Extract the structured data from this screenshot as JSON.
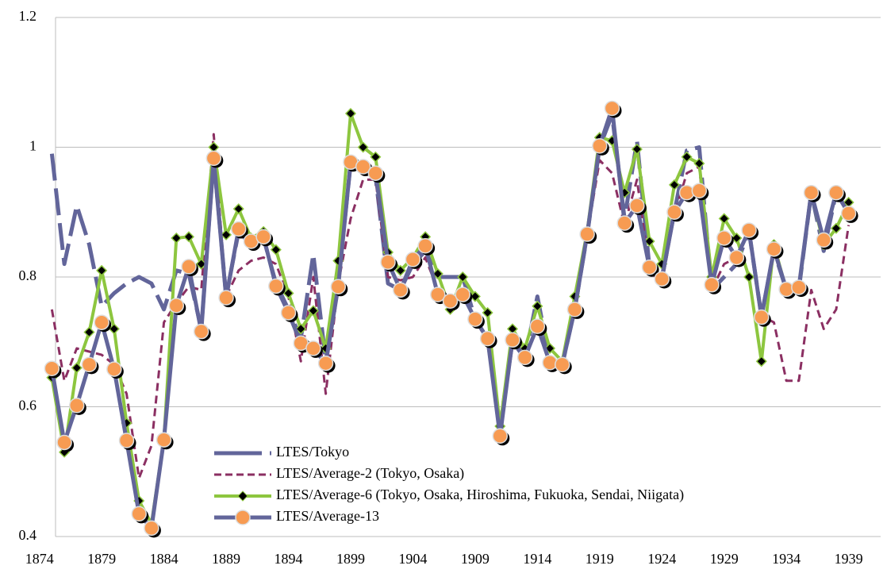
{
  "chart_data": {
    "type": "line",
    "x": [
      1875,
      1876,
      1877,
      1878,
      1879,
      1880,
      1881,
      1882,
      1883,
      1884,
      1885,
      1886,
      1887,
      1888,
      1889,
      1890,
      1891,
      1892,
      1893,
      1894,
      1895,
      1896,
      1897,
      1898,
      1899,
      1900,
      1901,
      1902,
      1903,
      1904,
      1905,
      1906,
      1907,
      1908,
      1909,
      1910,
      1911,
      1912,
      1913,
      1914,
      1915,
      1916,
      1917,
      1918,
      1919,
      1920,
      1921,
      1922,
      1923,
      1924,
      1925,
      1926,
      1927,
      1928,
      1929,
      1930,
      1931,
      1932,
      1933,
      1934,
      1935,
      1936,
      1937,
      1938,
      1939
    ],
    "xlim": [
      1873,
      1941
    ],
    "xticks": [
      1874,
      1879,
      1884,
      1889,
      1894,
      1899,
      1904,
      1909,
      1914,
      1919,
      1924,
      1929,
      1934,
      1939
    ],
    "ylim": [
      0.4,
      1.2
    ],
    "yticks": [
      0.4,
      0.6,
      0.8,
      1,
      1.2
    ],
    "grid": true,
    "legend": "lower-left",
    "series": [
      {
        "name": "LTES/Tokyo",
        "color": "#62659a",
        "line_style": "long-dash",
        "marker": "none",
        "values": [
          0.99,
          0.82,
          0.91,
          0.85,
          0.755,
          0.775,
          0.79,
          0.8,
          0.79,
          0.75,
          0.81,
          0.805,
          0.72,
          0.985,
          0.77,
          0.87,
          0.85,
          0.86,
          0.79,
          0.75,
          0.705,
          0.835,
          0.67,
          0.79,
          0.975,
          0.965,
          0.955,
          0.79,
          0.78,
          0.82,
          0.84,
          0.8,
          0.8,
          0.8,
          0.735,
          0.705,
          0.57,
          0.7,
          0.675,
          0.77,
          0.67,
          0.665,
          0.75,
          0.865,
          1.0,
          1.05,
          0.89,
          1.01,
          0.815,
          0.8,
          0.9,
          0.995,
          1.0,
          0.78,
          0.8,
          0.82,
          0.87,
          0.74,
          0.84,
          0.78,
          0.78,
          0.93,
          0.84,
          0.93,
          0.9
        ]
      },
      {
        "name": "LTES/Average-2 (Tokyo, Osaka)",
        "color": "#8b2f62",
        "line_style": "dash",
        "marker": "none",
        "values": [
          0.75,
          0.64,
          0.69,
          0.685,
          0.68,
          0.665,
          0.62,
          0.49,
          0.54,
          0.73,
          0.76,
          0.785,
          0.78,
          1.02,
          0.77,
          0.81,
          0.825,
          0.83,
          0.82,
          0.77,
          0.67,
          0.8,
          0.62,
          0.79,
          0.89,
          0.95,
          0.95,
          0.8,
          0.795,
          0.8,
          0.83,
          0.78,
          0.76,
          0.77,
          0.735,
          0.7,
          0.56,
          0.7,
          0.675,
          0.72,
          0.67,
          0.665,
          0.75,
          0.865,
          0.98,
          0.96,
          0.88,
          0.95,
          0.81,
          0.79,
          0.895,
          0.96,
          0.97,
          0.78,
          0.82,
          0.83,
          0.87,
          0.74,
          0.73,
          0.64,
          0.64,
          0.78,
          0.72,
          0.75,
          0.88
        ]
      },
      {
        "name": "LTES/Average-6 (Tokyo, Osaka, Hiroshima, Fukuoka, Sendai, Niigata)",
        "color": "#8dc63f",
        "line_style": "solid",
        "marker": "diamond",
        "values": [
          0.645,
          0.53,
          0.66,
          0.715,
          0.81,
          0.72,
          0.575,
          0.455,
          0.42,
          0.55,
          0.86,
          0.862,
          0.82,
          1.0,
          0.865,
          0.905,
          0.86,
          0.87,
          0.842,
          0.775,
          0.72,
          0.748,
          0.69,
          0.825,
          1.052,
          1.0,
          0.985,
          0.838,
          0.81,
          0.83,
          0.862,
          0.805,
          0.75,
          0.8,
          0.77,
          0.745,
          0.57,
          0.72,
          0.69,
          0.755,
          0.69,
          0.67,
          0.77,
          0.87,
          1.015,
          1.01,
          0.93,
          0.997,
          0.855,
          0.82,
          0.942,
          0.985,
          0.975,
          0.8,
          0.89,
          0.86,
          0.8,
          0.67,
          0.85,
          0.78,
          0.78,
          0.93,
          0.85,
          0.875,
          0.915
        ]
      },
      {
        "name": "LTES/Average-13",
        "color": "#62659a",
        "line_style": "solid",
        "marker": "circle",
        "values": [
          0.659,
          0.545,
          0.602,
          0.665,
          0.73,
          0.658,
          0.548,
          0.435,
          0.413,
          0.549,
          0.756,
          0.816,
          0.716,
          0.983,
          0.768,
          0.874,
          0.855,
          0.862,
          0.786,
          0.745,
          0.698,
          0.69,
          0.667,
          0.785,
          0.977,
          0.97,
          0.96,
          0.823,
          0.78,
          0.827,
          0.848,
          0.773,
          0.763,
          0.773,
          0.735,
          0.705,
          0.555,
          0.703,
          0.676,
          0.724,
          0.668,
          0.665,
          0.75,
          0.866,
          1.002,
          1.06,
          0.883,
          0.91,
          0.815,
          0.797,
          0.9,
          0.93,
          0.933,
          0.788,
          0.86,
          0.83,
          0.872,
          0.738,
          0.843,
          0.781,
          0.784,
          0.93,
          0.857,
          0.93,
          0.898
        ]
      }
    ]
  }
}
